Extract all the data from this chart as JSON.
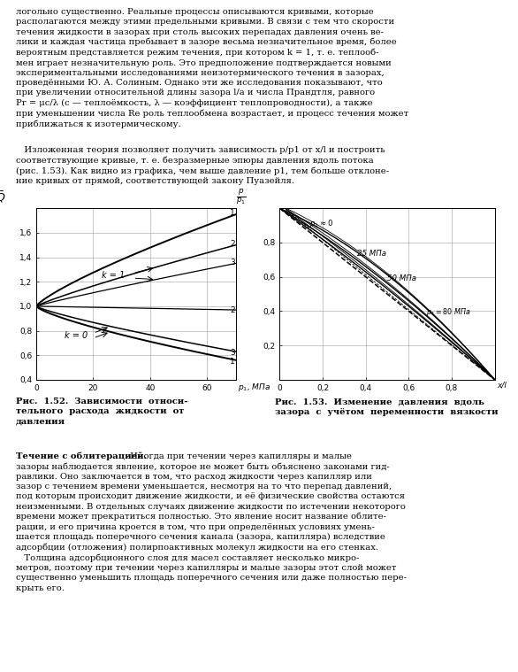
{
  "fig_width": 5.86,
  "fig_height": 7.59,
  "dpi": 100,
  "bg_color": "#ffffff",
  "top_text_lines": [
    "логольно существенно. Реальные процессы описываются кривыми, которые",
    "располагаются между этими предельными кривыми. В связи с тем что скорости",
    "течения жидкости в зазорах при столь высоких перепадах давления очень ве-",
    "лики и каждая частица пребывает в зазоре весьма незначительное время, более",
    "вероятным представляется режим течения, при котором k = 1, т. е. теплооб-",
    "мен играет незначительную роль. Это предположение подтверждается новыми",
    "экспериментальными исследованиями неизотермического течения в зазорах,",
    "проведёнными Ю. А. Солиным. Однако эти же исследования показывают, что",
    "при увеличении относительной длины зазора l/a и числа Прандтля, равного",
    "Pr = μc/λ (c — теплоёмкость, λ — коэффициент теплопроводности), а также",
    "при уменьшении числа Re роль теплообмена возрастает, и процесс течения может",
    "приближаться к изотермическому."
  ],
  "para_text_lines": [
    "   Изложенная теория позволяет получить зависимость p/p1 от x/l и построить",
    "соответствующие кривые, т. е. безразмерные эпюры давления вдоль потока",
    "(рис. 1.53). Как видно из графика, чем выше давление p1, тем больше отклоне-",
    "ние кривых от прямой, соответствующей закону Пуазейля."
  ],
  "caption1_lines": [
    "Рис.  1.52.  Зависимости  относи-",
    "тельного  расхода  жидкости  от",
    "давления"
  ],
  "caption2_lines": [
    "Рис.  1.53.  Изменение  давления  вдоль",
    "зазора  с  учётом  переменности  вязкости"
  ],
  "bottom_bold": "Течение с облитерацией.",
  "bottom_bold_rest": " Иногда при течении через капилляры и малые",
  "bottom_rest_lines": [
    "зазоры наблюдается явление, которое не может быть объяснено законами гид-",
    "равлики. Оно заключается в том, что расход жидкости через капилляр или",
    "зазор с течением времени уменьшается, несмотря на то что перепад давлений,",
    "под которым происходит движение жидкости, и её физические свойства остаются",
    "неизменными. В отдельных случаях движение жидкости по истечении некоторого",
    "времени может прекратиться полностью. Это явление носит название облите-",
    "рации, и его причина кроется в том, что при определённых условиях умень-",
    "шается площадь поперечного сечения канала (зазора, капилляра) вследствие",
    "адсорбции (отложения) полирпоактивных молекул жидкости на его стенках.",
    "   Толщина адсорбционного слоя для масел составляет несколько микро-",
    "метров, поэтому при течении через капилляры и малые зазоры этот слой может",
    "существенно уменьшить площадь поперечного сечения или даже полностью пере-",
    "крыть его."
  ],
  "chart1": {
    "xlim": [
      0,
      70
    ],
    "ylim": [
      0.4,
      1.8
    ],
    "xticks": [
      0,
      20,
      40,
      60
    ],
    "yticks": [
      0.4,
      0.6,
      0.8,
      1.0,
      1.2,
      1.4,
      1.6
    ],
    "ytick_labels": [
      "0,4",
      "0,6",
      "0,8",
      "1,0",
      "1,2",
      "1,4",
      "1,6"
    ],
    "xtick_labels": [
      "0",
      "20",
      "40",
      "60"
    ]
  },
  "chart2": {
    "xlim": [
      0,
      1.0
    ],
    "ylim": [
      0,
      1.0
    ],
    "xticks": [
      0,
      0.2,
      0.4,
      0.6,
      0.8
    ],
    "yticks": [
      0.2,
      0.4,
      0.6,
      0.8
    ],
    "ytick_labels": [
      "0,2",
      "0,4",
      "0,6",
      "0,8"
    ],
    "xtick_labels": [
      "0",
      "0,2",
      "0,4",
      "0,6",
      "0,8"
    ]
  }
}
